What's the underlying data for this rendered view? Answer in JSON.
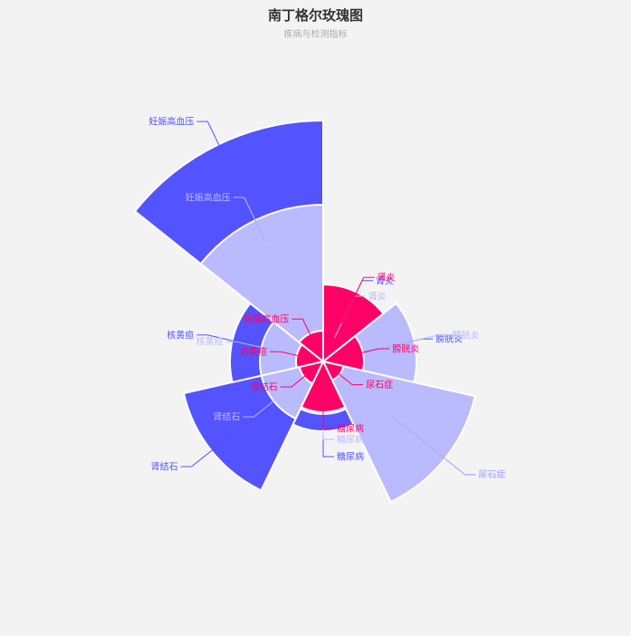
{
  "chart_data": {
    "type": "rose",
    "title": "南丁格尔玫瑰图",
    "subtitle": "疾病与检测指标",
    "categories": [
      "肾炎",
      "膀胱炎",
      "尿石症",
      "糖尿病",
      "肾结石",
      "核黄疸",
      "妊娠高血压"
    ],
    "series": [
      {
        "color": "#5353ff",
        "values": [
          71,
          84,
          172,
          77,
          158,
          103,
          266
        ]
      },
      {
        "color": "#babaff",
        "values": [
          52,
          103,
          172,
          58,
          70,
          70,
          173
        ]
      },
      {
        "color": "#ff0066",
        "values": [
          85,
          45,
          23,
          56,
          27,
          30,
          34
        ]
      }
    ],
    "max_value": 266
  }
}
